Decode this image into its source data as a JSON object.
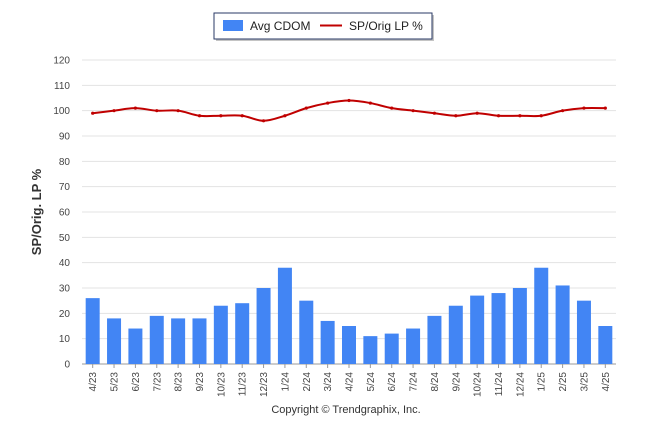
{
  "chart_data": {
    "type": "bar",
    "title": "",
    "xlabel": "",
    "ylabel": "SP/Orig. LP %",
    "ylim": [
      0,
      120
    ],
    "yticks": [
      "0",
      "10",
      "20",
      "30",
      "40",
      "50",
      "60",
      "70",
      "80",
      "90",
      "100",
      "110",
      "120"
    ],
    "grid": true,
    "legend_position": "top-center",
    "categories": [
      "4/23",
      "5/23",
      "6/23",
      "7/23",
      "8/23",
      "9/23",
      "10/23",
      "11/23",
      "12/23",
      "1/24",
      "2/24",
      "3/24",
      "4/24",
      "5/24",
      "6/24",
      "7/24",
      "8/24",
      "9/24",
      "10/24",
      "11/24",
      "12/24",
      "1/25",
      "2/25",
      "3/25",
      "4/25"
    ],
    "series": [
      {
        "name": "Avg CDOM",
        "type": "bar",
        "color": "#4285f4",
        "values": [
          26,
          18,
          14,
          19,
          18,
          18,
          23,
          24,
          30,
          38,
          25,
          17,
          15,
          11,
          12,
          14,
          19,
          23,
          27,
          28,
          30,
          38,
          31,
          25,
          15
        ]
      },
      {
        "name": "SP/Orig LP %",
        "type": "line",
        "color": "#c00000",
        "values": [
          99,
          100,
          101,
          100,
          100,
          98,
          98,
          98,
          96,
          98,
          101,
          103,
          104,
          103,
          101,
          100,
          99,
          98,
          99,
          98,
          98,
          98,
          100,
          101,
          101
        ]
      }
    ]
  },
  "footer": {
    "copyright": "Copyright © Trendgraphix, Inc."
  }
}
